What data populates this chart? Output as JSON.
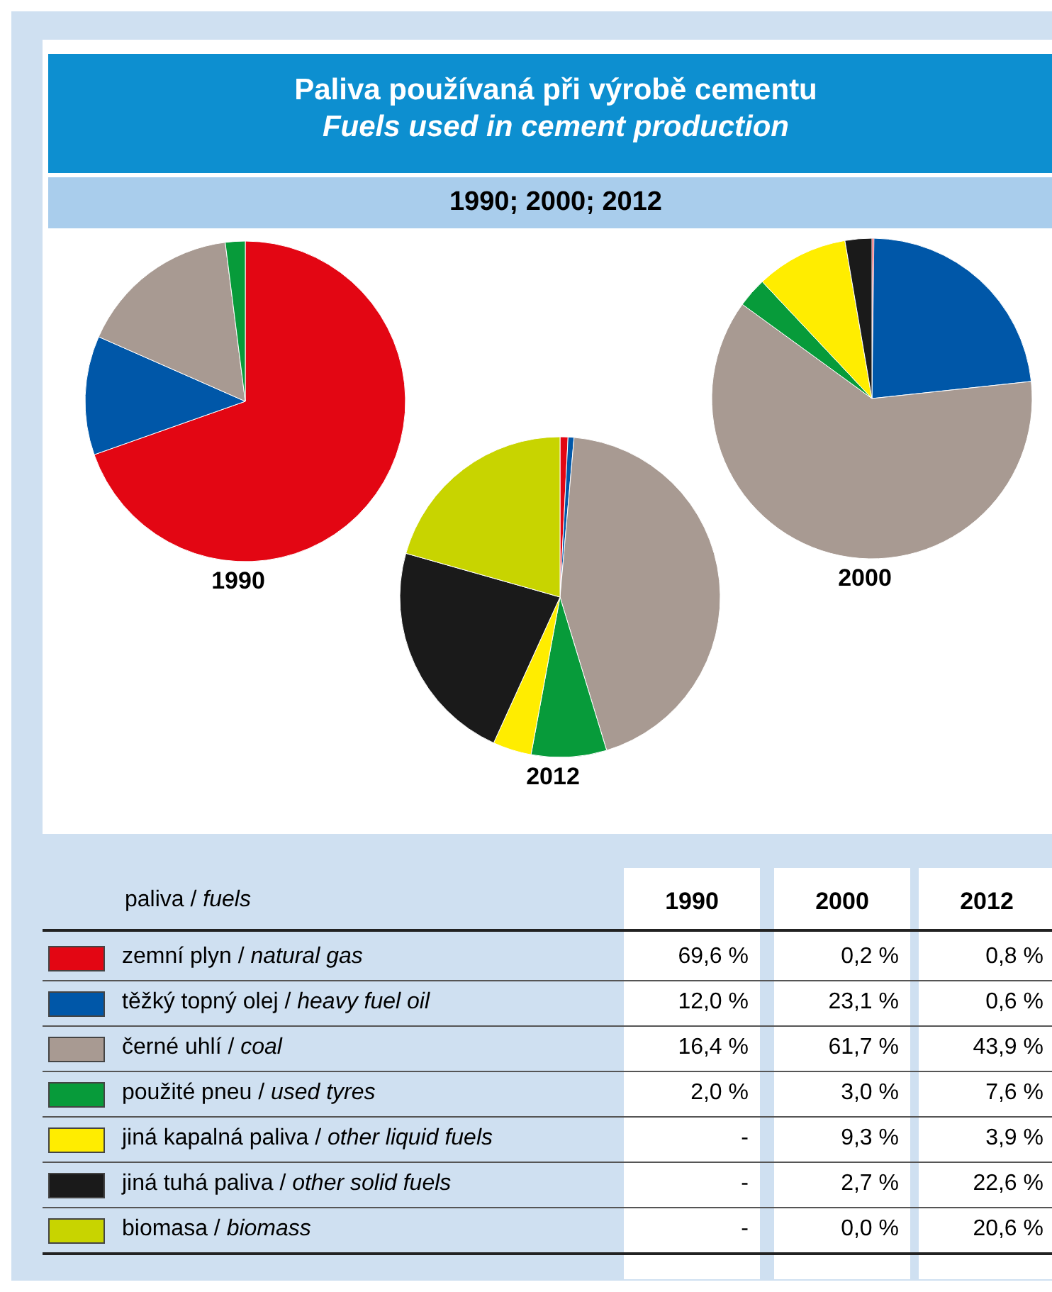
{
  "chart_data": {
    "type": "pie",
    "title": "Paliva používaná při výrobě cementu",
    "subtitle": "Fuels used in cement production",
    "annotations": [
      "1990; 2000; 2012"
    ],
    "legend": "bottom",
    "legend_title": "paliva / fuels",
    "categories": [
      "zemní plyn / natural gas",
      "těžký topný olej / heavy fuel oil",
      "černé uhlí / coal",
      "použité pneu / used tyres",
      "jiná kapalná paliva / other liquid fuels",
      "jiná tuhá paliva / other solid fuels",
      "biomasa / biomass"
    ],
    "colors": [
      "#e30613",
      "#0057a8",
      "#a89a92",
      "#079b3a",
      "#ffed00",
      "#1a1a1a",
      "#c8d400"
    ],
    "series": [
      {
        "name": "1990",
        "values": [
          69.6,
          12.0,
          16.4,
          2.0,
          null,
          null,
          null
        ],
        "value_labels": [
          "69,6 %",
          "12,0 %",
          "16,4 %",
          "2,0 %",
          "-",
          "-",
          "-"
        ]
      },
      {
        "name": "2000",
        "values": [
          0.2,
          23.1,
          61.7,
          3.0,
          9.3,
          2.7,
          0.0
        ],
        "value_labels": [
          "0,2 %",
          "23,1 %",
          "61,7 %",
          "3,0 %",
          "9,3 %",
          "2,7 %",
          "0,0 %"
        ]
      },
      {
        "name": "2012",
        "values": [
          0.8,
          0.6,
          43.9,
          7.6,
          3.9,
          22.6,
          20.6
        ],
        "value_labels": [
          "0,8 %",
          "0,6 %",
          "43,9 %",
          "7,6 %",
          "3,9 %",
          "22,6 %",
          "20,6 %"
        ]
      }
    ]
  }
}
